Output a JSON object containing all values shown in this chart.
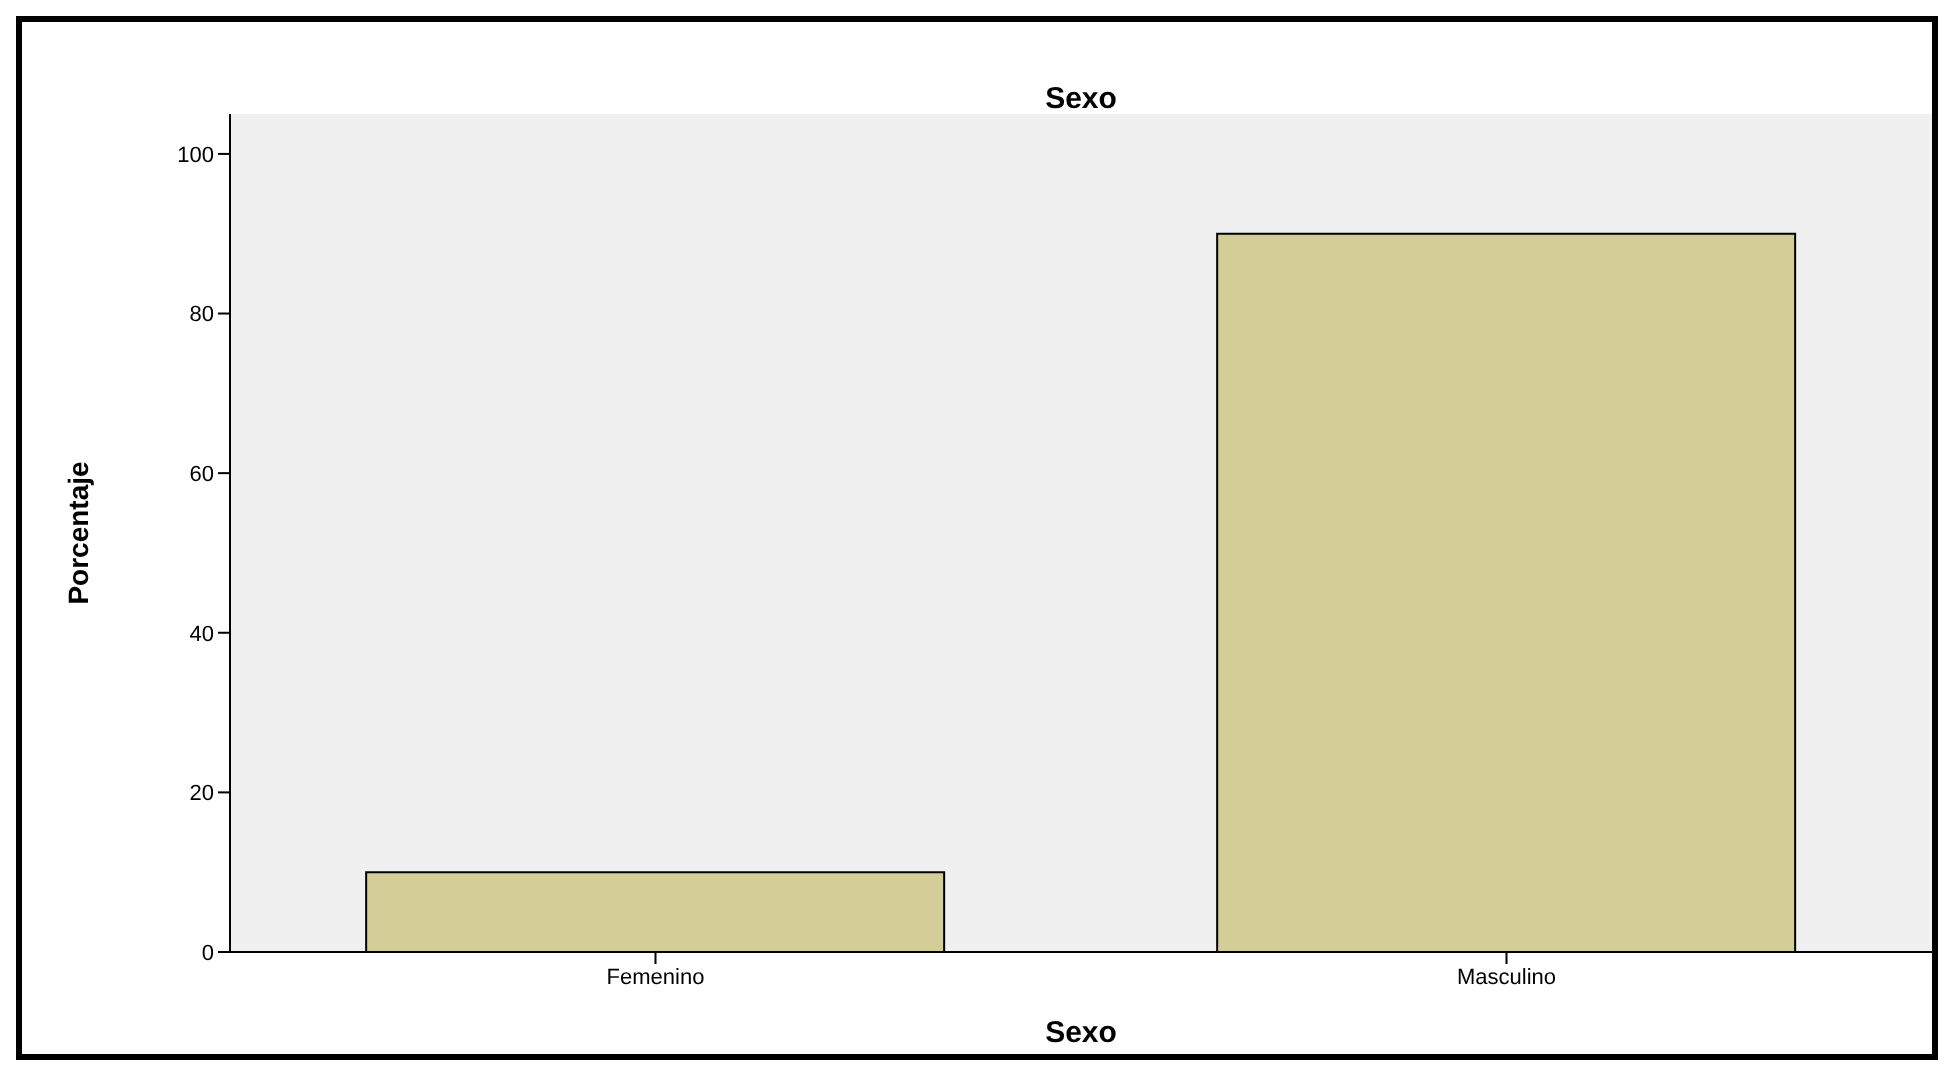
{
  "chart_data": {
    "type": "bar",
    "title": "Sexo",
    "xlabel": "Sexo",
    "ylabel": "Porcentaje",
    "categories": [
      "Femenino",
      "Masculino"
    ],
    "values": [
      10,
      90
    ],
    "color": "#d3ce97",
    "ylim": [
      0,
      105
    ],
    "yticks": [
      0,
      20,
      40,
      60,
      80,
      100
    ],
    "grid": false,
    "legend": false
  }
}
